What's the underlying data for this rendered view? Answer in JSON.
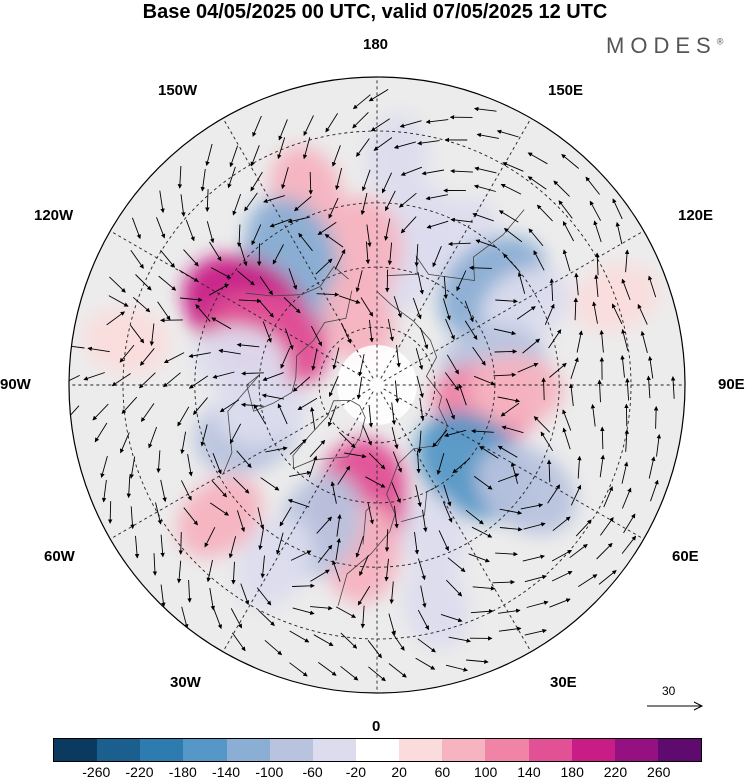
{
  "title": "Base 04/05/2025 00 UTC, valid 07/05/2025 12 UTC",
  "brand": "MODES",
  "brand_mark": "®",
  "longitude_labels": {
    "top": "180",
    "bottom": "0",
    "left": "90W",
    "right": "90E",
    "upper_left": "150W",
    "upper_right": "150E",
    "mid_upper_left": "120W",
    "mid_upper_right": "120E",
    "mid_lower_left": "60W",
    "mid_lower_right": "60E",
    "lower_left": "30W",
    "lower_right": "30E"
  },
  "reference_vector": {
    "value": "30"
  },
  "colorbar": {
    "colors": [
      "#0b3a60",
      "#1a5f8e",
      "#2e7bb0",
      "#5597c6",
      "#8aaed4",
      "#b8c3de",
      "#dcdcee",
      "#ffffff",
      "#fbdcdc",
      "#f6b3c0",
      "#f083a6",
      "#e25096",
      "#c81c86",
      "#951182",
      "#5e0a6e"
    ],
    "tick_labels": [
      "-260",
      "-220",
      "-180",
      "-140",
      "-100",
      "-60",
      "-20",
      "20",
      "60",
      "100",
      "140",
      "180",
      "220",
      "260"
    ]
  },
  "map": {
    "projection": "north-polar-stereographic",
    "shading_units_note": "",
    "anomalies": [
      {
        "lon": 165,
        "lat": 50,
        "value": -60
      },
      {
        "lon": 168,
        "lat": 60,
        "value": -40
      },
      {
        "lon": -175,
        "lat": 55,
        "value": 80
      },
      {
        "lon": -160,
        "lat": 40,
        "value": 60
      },
      {
        "lon": 150,
        "lat": 48,
        "value": -40
      },
      {
        "lon": -140,
        "lat": 56,
        "value": -140
      },
      {
        "lon": -148,
        "lat": 50,
        "value": -110
      },
      {
        "lon": -120,
        "lat": 52,
        "value": 180
      },
      {
        "lon": -112,
        "lat": 60,
        "value": 160
      },
      {
        "lon": -100,
        "lat": 55,
        "value": -60
      },
      {
        "lon": 130,
        "lat": 52,
        "value": -140
      },
      {
        "lon": 118,
        "lat": 48,
        "value": -60
      },
      {
        "lon": 100,
        "lat": 60,
        "value": -100
      },
      {
        "lon": 80,
        "lat": 62,
        "value": 100
      },
      {
        "lon": 88,
        "lat": 55,
        "value": 60
      },
      {
        "lon": 50,
        "lat": 58,
        "value": -160
      },
      {
        "lon": 55,
        "lat": 45,
        "value": -100
      },
      {
        "lon": 20,
        "lat": 50,
        "value": -40
      },
      {
        "lon": -8,
        "lat": 60,
        "value": 160
      },
      {
        "lon": -5,
        "lat": 48,
        "value": 80
      },
      {
        "lon": -22,
        "lat": 52,
        "value": -100
      },
      {
        "lon": -30,
        "lat": 40,
        "value": -60
      },
      {
        "lon": -50,
        "lat": 40,
        "value": 60
      },
      {
        "lon": -70,
        "lat": 55,
        "value": -100
      },
      {
        "lon": -78,
        "lat": 60,
        "value": -60
      },
      {
        "lon": -165,
        "lat": 72,
        "value": 60
      },
      {
        "lon": 175,
        "lat": 35,
        "value": -30
      },
      {
        "lon": 15,
        "lat": 35,
        "value": -40
      },
      {
        "lon": 110,
        "lat": 30,
        "value": 40
      },
      {
        "lon": -100,
        "lat": 30,
        "value": 40
      }
    ]
  }
}
